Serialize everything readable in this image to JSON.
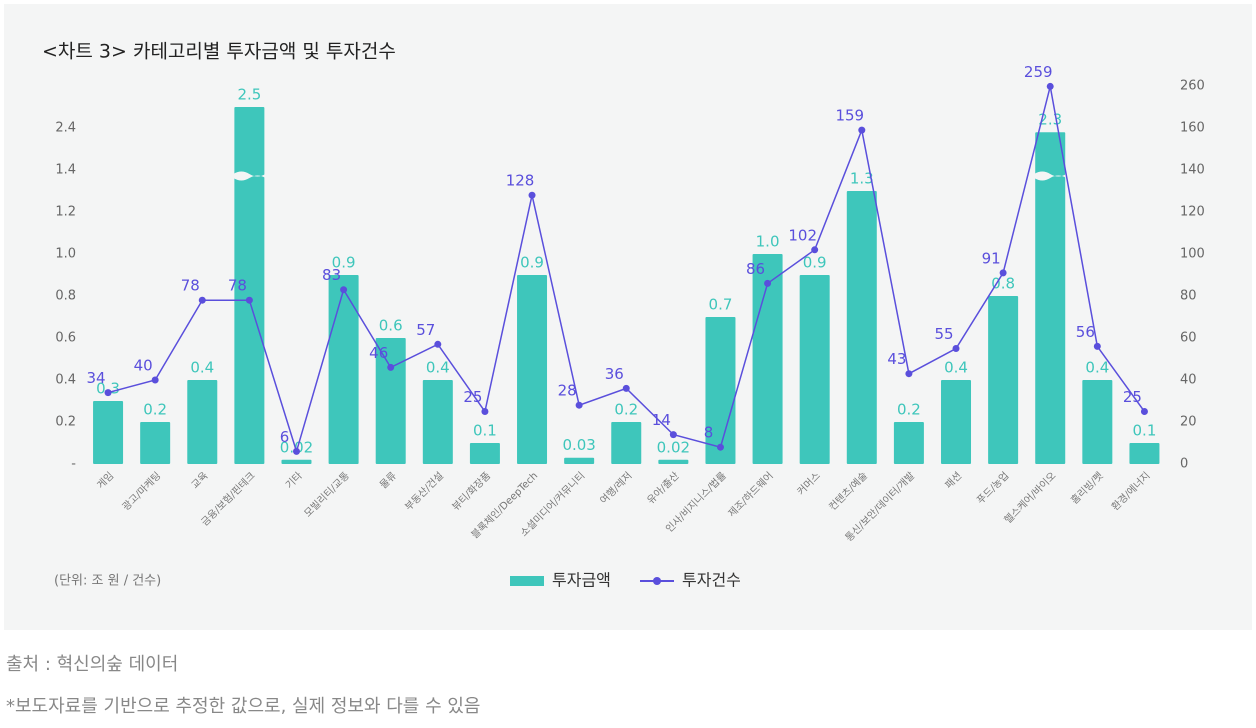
{
  "chart_data": {
    "type": "bar",
    "title": "<차트 3> 카테고리별 투자금액 및 투자건수",
    "note": "(단위: 조 원 / 건수)",
    "categories": [
      "게임",
      "광고/마케팅",
      "교육",
      "금융/보험/핀테크",
      "기타",
      "모빌리티/교통",
      "물류",
      "부동산/건설",
      "뷰티/화장품",
      "블록체인/DeepTech",
      "소셜미디어/커뮤니티",
      "여행/레저",
      "유아/출산",
      "인사/비지니스/법률",
      "제조/하드웨어",
      "커머스",
      "컨텐츠/예술",
      "통신/보안/데이터/개발",
      "패션",
      "푸드/농업",
      "헬스케어/바이오",
      "홈리빙/펫",
      "환경/에너지"
    ],
    "series": [
      {
        "name": "투자금액",
        "type": "bar",
        "color": "#3ec6bb",
        "values": [
          0.3,
          0.2,
          0.4,
          2.5,
          0.02,
          0.9,
          0.6,
          0.4,
          0.1,
          0.9,
          0.03,
          0.2,
          0.02,
          0.7,
          1.0,
          0.9,
          1.3,
          0.2,
          0.4,
          0.8,
          2.3,
          0.4,
          0.1
        ],
        "value_labels": [
          "0.3",
          "0.2",
          "0.4",
          "2.5",
          "0.02",
          "0.9",
          "0.6",
          "0.4",
          "0.1",
          "0.9",
          "0.03",
          "0.2",
          "0.02",
          "0.7",
          "1.0",
          "0.9",
          "1.3",
          "0.2",
          "0.4",
          "0.8",
          "2.3",
          "0.4",
          "0.1"
        ]
      },
      {
        "name": "투자건수",
        "type": "line",
        "axis": "y2",
        "color": "#5a4fdc",
        "values": [
          34,
          40,
          78,
          78,
          6,
          83,
          46,
          57,
          25,
          128,
          28,
          36,
          14,
          8,
          86,
          102,
          159,
          43,
          55,
          91,
          259,
          56,
          25
        ]
      }
    ],
    "ylim": [
      0,
      2.4
    ],
    "yticks": [
      {
        "value": 0,
        "label": "-"
      },
      0.2,
      0.4,
      0.6,
      0.8,
      {
        "value": 1.0,
        "label": "1.0"
      },
      1.2,
      1.4,
      2.4
    ],
    "y2lim": [
      0,
      260
    ],
    "y2ticks": [
      0,
      20,
      40,
      60,
      80,
      100,
      120,
      140,
      160,
      260
    ],
    "legend": "bottom",
    "source": "출처 : 혁신의숲 데이터",
    "disclaimer": "*보도자료를 기반으로 추정한 값으로, 실제 정보와 다를 수 있음"
  }
}
